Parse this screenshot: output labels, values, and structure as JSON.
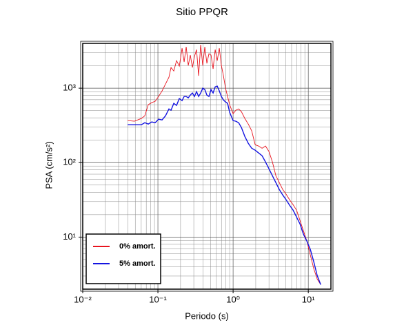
{
  "chart_data": {
    "type": "line",
    "title": "Sitio PPQR",
    "x_label": "Periodo (s)",
    "y_label": "PSA (cm/s²)",
    "xscale": "log",
    "yscale": "log",
    "grid": true,
    "legend": "lower left",
    "xlim": [
      0.01,
      20
    ],
    "ylim": [
      2,
      4000
    ],
    "xticks": [
      {
        "value": 0.01,
        "label": "10⁻²"
      },
      {
        "value": 0.1,
        "label": "10⁻¹"
      },
      {
        "value": 1,
        "label": "10⁰"
      },
      {
        "value": 10,
        "label": "10¹"
      }
    ],
    "yticks": [
      {
        "value": 10,
        "label": "10¹"
      },
      {
        "value": 100,
        "label": "10²"
      },
      {
        "value": 1000,
        "label": "10³"
      }
    ],
    "xminorticks": [
      0.02,
      0.03,
      0.04,
      0.05,
      0.06,
      0.07,
      0.08,
      0.09,
      0.2,
      0.3,
      0.4,
      0.5,
      0.6,
      0.7,
      0.8,
      0.9,
      2,
      3,
      4,
      5,
      6,
      7,
      8,
      9
    ],
    "yminorticks": [
      3,
      4,
      5,
      6,
      7,
      8,
      9,
      20,
      30,
      40,
      50,
      60,
      70,
      80,
      90,
      200,
      300,
      400,
      500,
      600,
      700,
      800,
      900,
      2000,
      3000
    ],
    "x": [
      0.0395,
      0.0488,
      0.0602,
      0.0669,
      0.0744,
      0.0827,
      0.0919,
      0.1021,
      0.1135,
      0.1262,
      0.1402,
      0.1494,
      0.1626,
      0.1769,
      0.1925,
      0.2095,
      0.2232,
      0.2377,
      0.2533,
      0.2698,
      0.2875,
      0.3063,
      0.3264,
      0.3477,
      0.3705,
      0.3947,
      0.4205,
      0.448,
      0.4773,
      0.5086,
      0.5418,
      0.5774,
      0.6151,
      0.6554,
      0.6982,
      0.7439,
      0.7925,
      0.8444,
      0.8997,
      1,
      1.088,
      1.184,
      1.289,
      1.432,
      1.591,
      1.769,
      1.966,
      2.185,
      2.428,
      2.699,
      3.0,
      3.334,
      3.706,
      4.119,
      4.577,
      5.087,
      5.654,
      6.284,
      6.982,
      7.761,
      8.626,
      9.587,
      10.65,
      11.84,
      13.16,
      14.63
    ],
    "series": [
      {
        "name": "0% amort.",
        "color": "#e8141e",
        "values": [
          367,
          360,
          392,
          426,
          600,
          640,
          667,
          774,
          918,
          1137,
          1407,
          1896,
          1703,
          2345,
          1978,
          3443,
          2248,
          3594,
          2023,
          2782,
          1896,
          2667,
          3302,
          1468,
          3831,
          2023,
          3594,
          2154,
          2905,
          2782,
          1816,
          3302,
          2345,
          3443,
          2023,
          1468,
          1000,
          774,
          600,
          454,
          506,
          527,
          484,
          392,
          330,
          267,
          174,
          167,
          156,
          167,
          141,
          102,
          66.7,
          53.9,
          43.5,
          37.5,
          31.6,
          27.2,
          23.0,
          16.7,
          12.1,
          8.8,
          5.74,
          3.75,
          2.72,
          2.3
        ]
      },
      {
        "name": "5% amort.",
        "color": "#1414e0",
        "values": [
          323,
          323,
          323,
          344,
          330,
          352,
          344,
          383,
          375,
          426,
          527,
          506,
          626,
          587,
          727,
          681,
          774,
          774,
          742,
          808,
          861,
          774,
          899,
          774,
          861,
          1000,
          958,
          808,
          774,
          958,
          861,
          1043,
          1066,
          918,
          774,
          696,
          653,
          626,
          474,
          367,
          360,
          344,
          297,
          225,
          182,
          156,
          147,
          135,
          124,
          102,
          82.6,
          66.7,
          53.9,
          43.5,
          36.7,
          31.6,
          26.7,
          23.0,
          18.6,
          15.0,
          10.9,
          8.8,
          6.82,
          4.64,
          3.03,
          2.3
        ]
      }
    ]
  }
}
